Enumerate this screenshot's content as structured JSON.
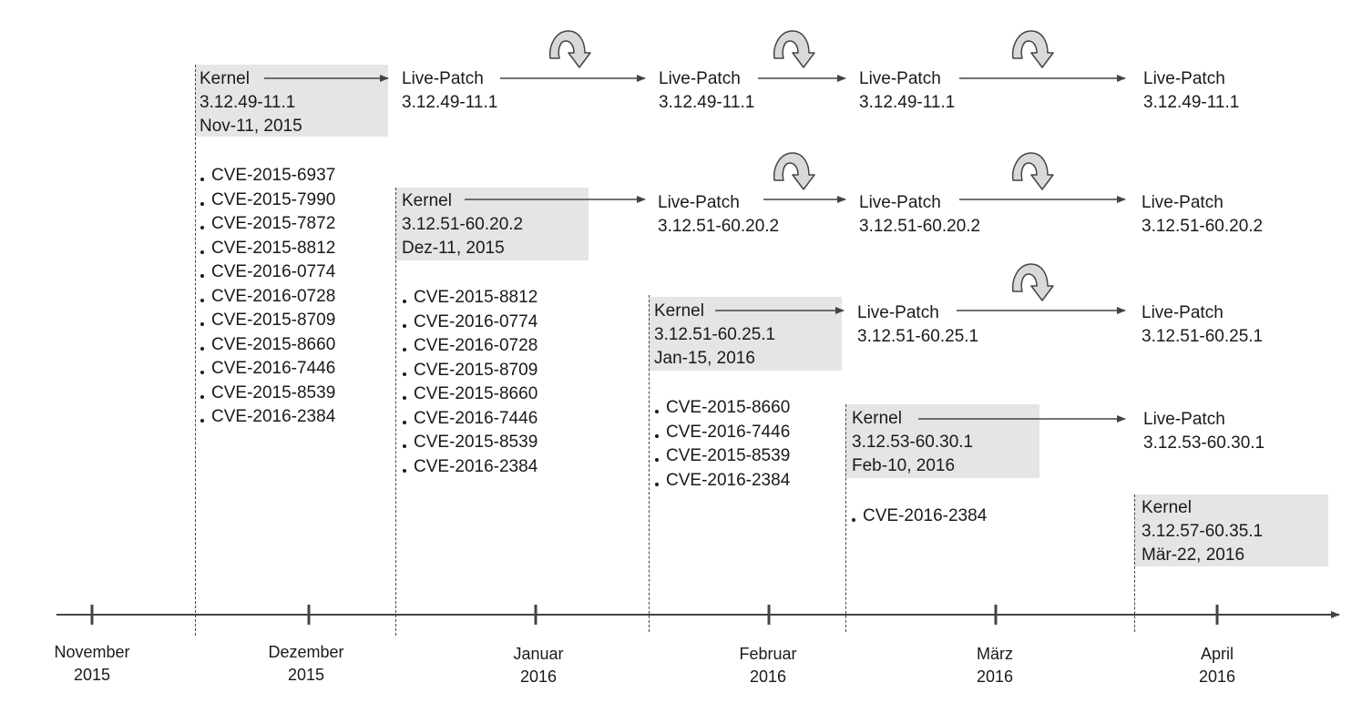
{
  "kernels": [
    {
      "label": "Kernel",
      "version": "3.12.49-11.1",
      "date": "Nov-11, 2015",
      "cves": [
        "CVE-2015-6937",
        "CVE-2015-7990",
        "CVE-2015-7872",
        "CVE-2015-8812",
        "CVE-2016-0774",
        "CVE-2016-0728",
        "CVE-2015-8709",
        "CVE-2015-8660",
        "CVE-2016-7446",
        "CVE-2015-8539",
        "CVE-2016-2384"
      ]
    },
    {
      "label": "Kernel",
      "version": "3.12.51-60.20.2",
      "date": "Dez-11, 2015",
      "cves": [
        "CVE-2015-8812",
        "CVE-2016-0774",
        "CVE-2016-0728",
        "CVE-2015-8709",
        "CVE-2015-8660",
        "CVE-2016-7446",
        "CVE-2015-8539",
        "CVE-2016-2384"
      ]
    },
    {
      "label": "Kernel",
      "version": "3.12.51-60.25.1",
      "date": "Jan-15, 2016",
      "cves": [
        "CVE-2015-8660",
        "CVE-2016-7446",
        "CVE-2015-8539",
        "CVE-2016-2384"
      ]
    },
    {
      "label": "Kernel",
      "version": "3.12.53-60.30.1",
      "date": "Feb-10, 2016",
      "cves": [
        "CVE-2016-2384"
      ]
    },
    {
      "label": "Kernel",
      "version": "3.12.57-60.35.1",
      "date": "Mär-22, 2016",
      "cves": []
    }
  ],
  "live_patch_label": "Live-Patch",
  "months": [
    {
      "name": "November",
      "year": "2015"
    },
    {
      "name": "Dezember",
      "year": "2015"
    },
    {
      "name": "Januar",
      "year": "2016"
    },
    {
      "name": "Februar",
      "year": "2016"
    },
    {
      "name": "März",
      "year": "2016"
    },
    {
      "name": "April",
      "year": "2016"
    }
  ],
  "colors": {
    "kernel_box": "#e5e5e5",
    "line": "#444444",
    "refresh_icon": "#d9d9d9"
  }
}
